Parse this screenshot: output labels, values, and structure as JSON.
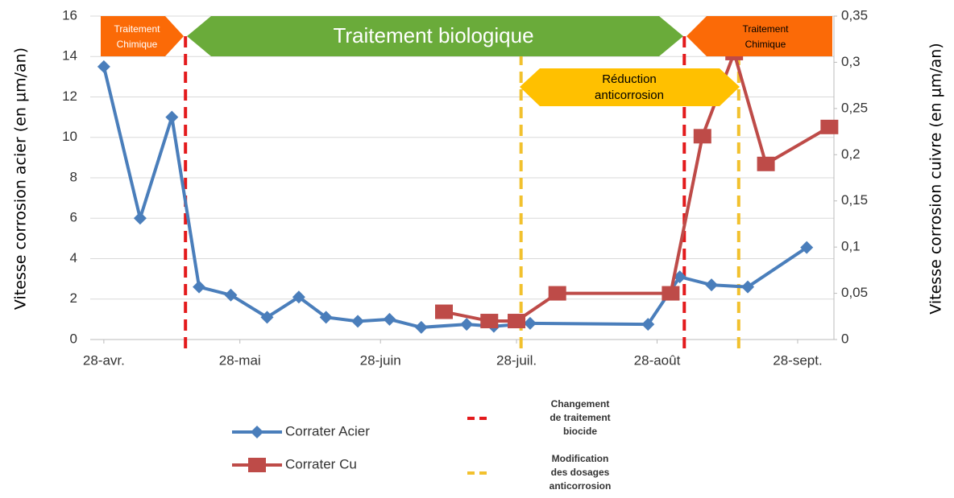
{
  "chart_data": {
    "type": "line",
    "xlim": [
      "04-25",
      "10-06"
    ],
    "xticks": [
      {
        "value": "04-28",
        "label": "28-avr."
      },
      {
        "value": "05-28",
        "label": "28-mai"
      },
      {
        "value": "06-28",
        "label": "28-juin"
      },
      {
        "value": "07-28",
        "label": "28-juil."
      },
      {
        "value": "08-28",
        "label": "28-août"
      },
      {
        "value": "09-28",
        "label": "28-sept."
      }
    ],
    "ylim": [
      0,
      16
    ],
    "yticks": [
      0,
      2,
      4,
      6,
      8,
      10,
      12,
      14,
      16
    ],
    "y2lim": [
      0,
      0.35
    ],
    "y2ticks": [
      0,
      {
        "value": 0.05,
        "label": "0,05"
      },
      {
        "value": 0.1,
        "label": "0,1"
      },
      {
        "value": 0.15,
        "label": "0,15"
      },
      {
        "value": 0.2,
        "label": "0,2"
      },
      {
        "value": 0.25,
        "label": "0,25"
      },
      {
        "value": 0.3,
        "label": "0,3"
      },
      {
        "value": 0.35,
        "label": "0,35"
      }
    ],
    "ylabel": "Vitesse corrosion acier (en µm/an)",
    "y2label": "Vitesse corrosion cuivre (en µm/an)",
    "grid": true,
    "series": [
      {
        "name": "Corrater Acier",
        "color": "#4a7ebb",
        "marker": "diamond",
        "x": [
          "04-28",
          "05-06",
          "05-13",
          "05-19",
          "05-26",
          "06-03",
          "06-10",
          "06-16",
          "06-23",
          "06-30",
          "07-07",
          "07-17",
          "07-23",
          "07-31",
          "08-26",
          "09-02",
          "09-09",
          "09-17",
          "09-30"
        ],
        "values": [
          13.5,
          6,
          11,
          2.6,
          2.2,
          1.1,
          2.1,
          1.1,
          0.9,
          1.0,
          0.6,
          0.75,
          0.65,
          0.8,
          0.75,
          3.1,
          2.7,
          2.6,
          4.55
        ]
      },
      {
        "name": "Corrater Cu",
        "color": "#be4b48",
        "marker": "square",
        "axis": "y2",
        "x": [
          "07-12",
          "07-22",
          "07-28",
          "08-06",
          "08-31",
          "09-07",
          "09-14",
          "09-21",
          "10-05"
        ],
        "values": [
          0.03,
          0.02,
          0.02,
          0.05,
          0.05,
          0.22,
          0.31,
          0.19,
          0.23
        ]
      }
    ],
    "vlines": [
      {
        "name": [
          "Changement",
          "de traitement",
          "biocide"
        ],
        "color": "#e31a1c",
        "x": [
          "05-16",
          "09-03"
        ]
      },
      {
        "name": [
          "Modification",
          "des dosages",
          "anticorrosion"
        ],
        "color": "#f2c12e",
        "x": [
          "07-29",
          "09-15"
        ]
      }
    ],
    "annotations": {
      "chem_left": [
        "Traitement",
        "Chimique"
      ],
      "bio": "Traitement biologique",
      "chem_right": [
        "Traitement",
        "Chimique"
      ],
      "reduction": [
        "Réduction",
        "anticorrosion"
      ]
    }
  }
}
